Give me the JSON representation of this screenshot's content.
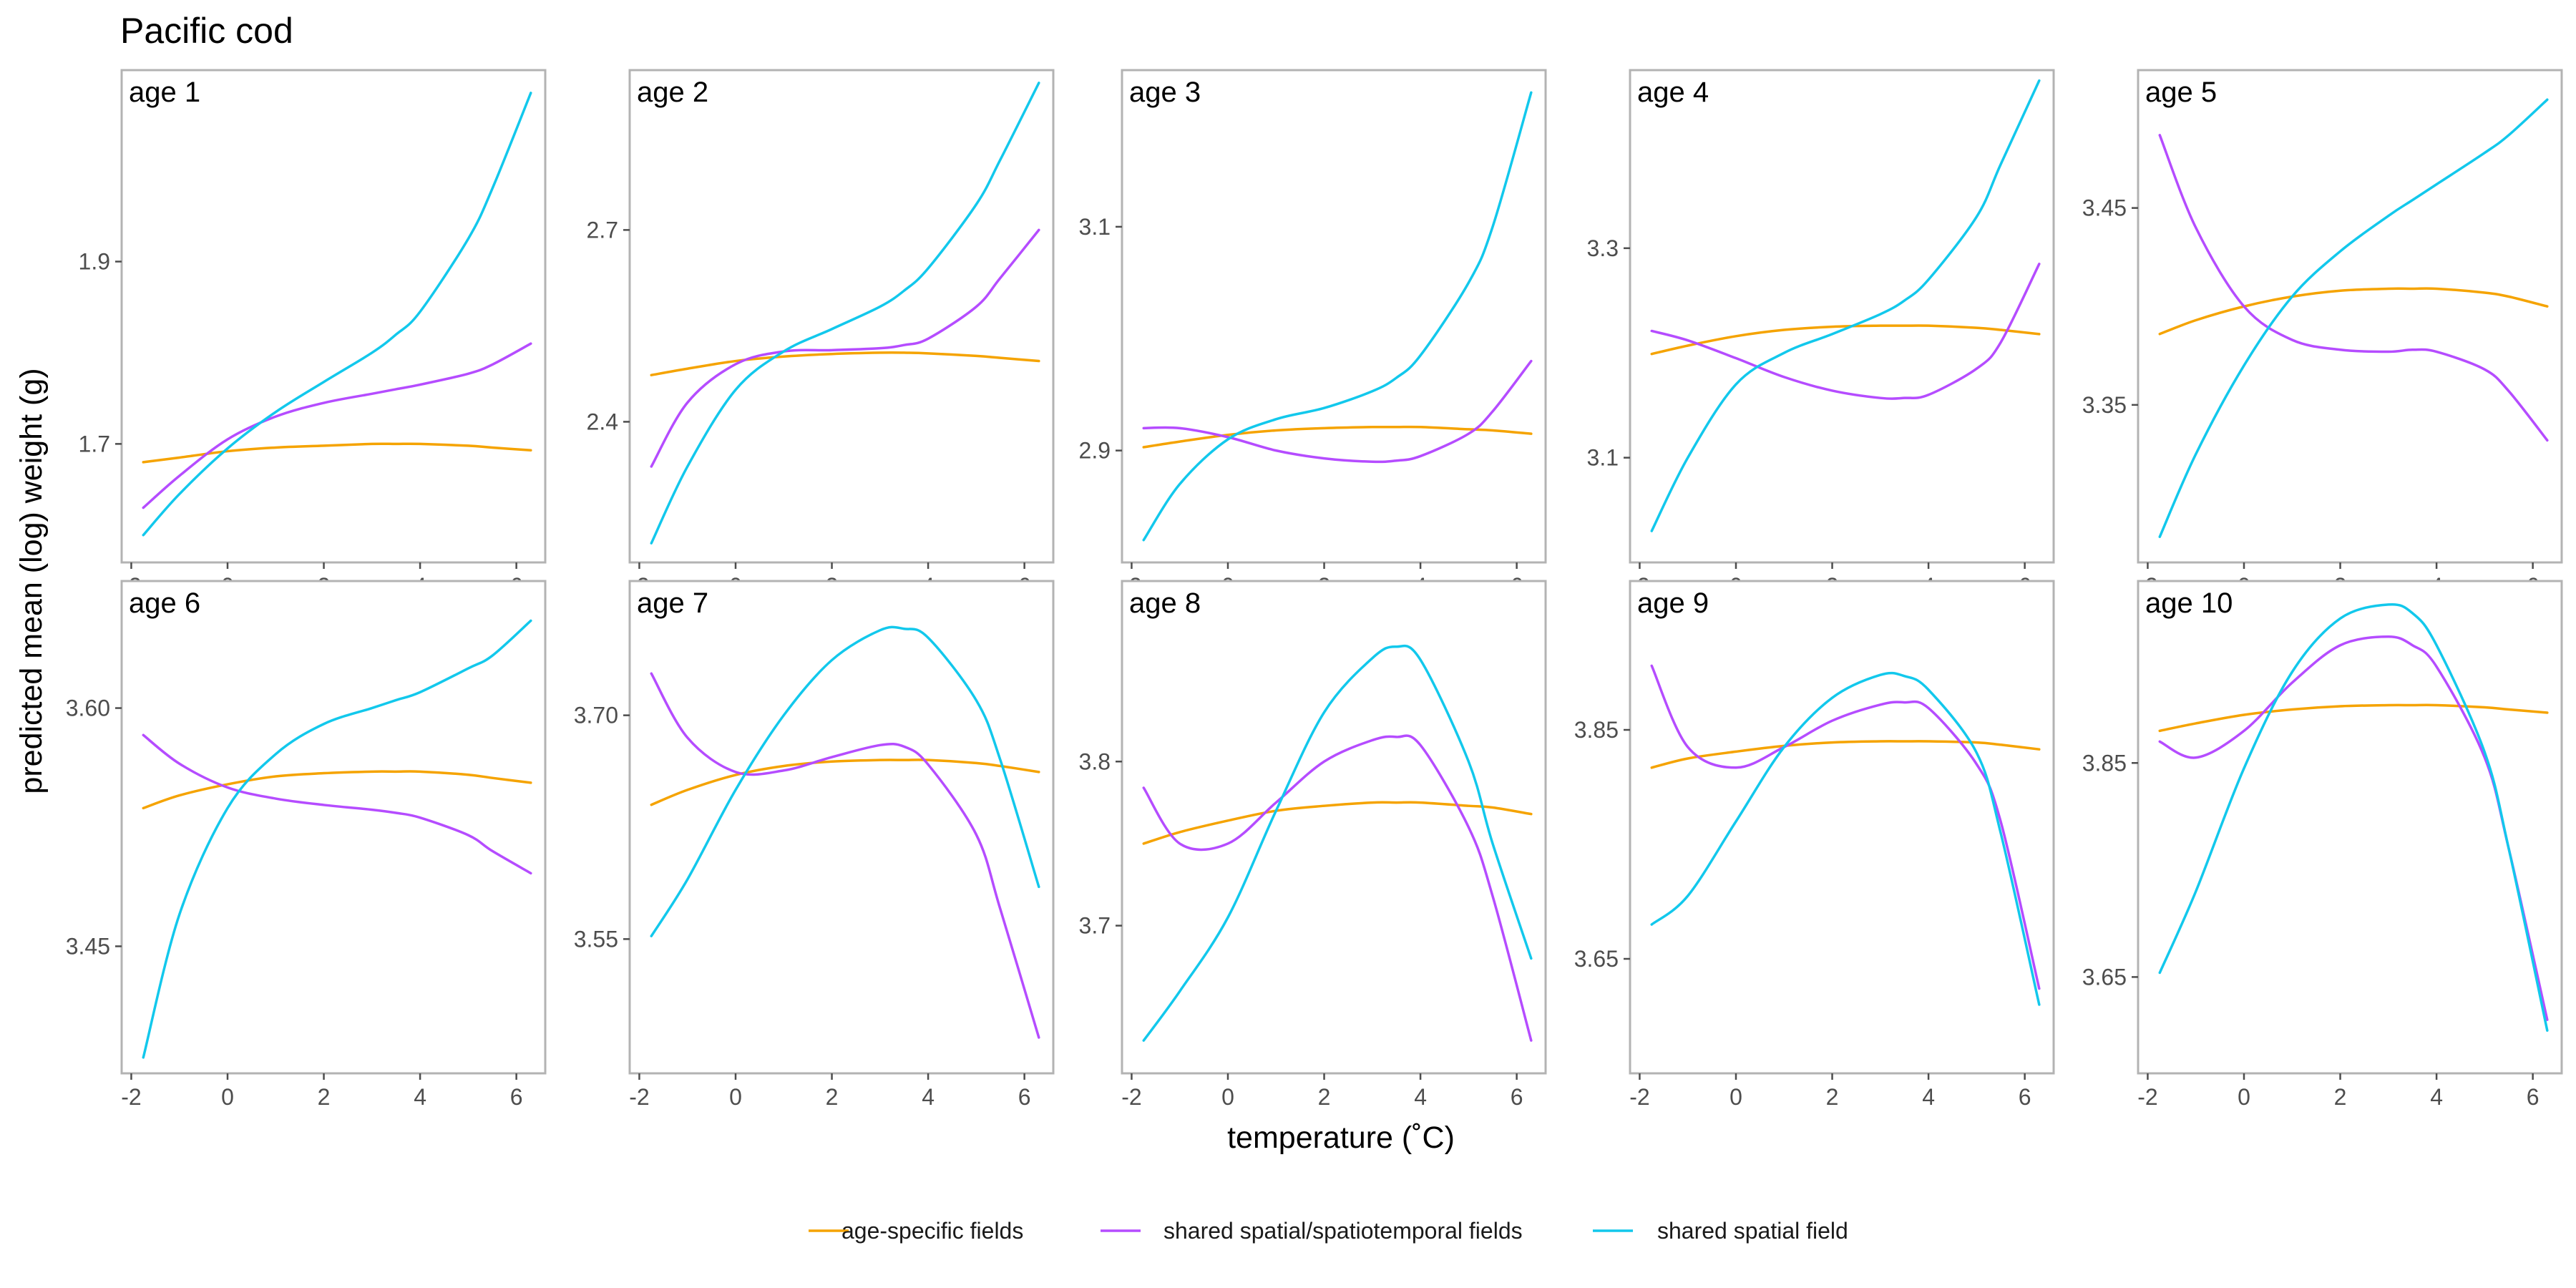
{
  "title": "Pacific cod",
  "chart_data": {
    "type": "line",
    "title": "Pacific cod",
    "xlabel": "temperature (˚C)",
    "ylabel": "predicted mean (log) weight (g)",
    "x_ticks": [
      -2,
      0,
      2,
      4,
      6
    ],
    "x_tick_labels": [
      "-2",
      "0",
      "2",
      "4",
      "6"
    ],
    "xlim": [
      -2.2,
      6.6
    ],
    "x": [
      -1.75,
      -1.0,
      0.0,
      1.0,
      2.0,
      3.0,
      3.5,
      4.0,
      5.0,
      5.5,
      6.3
    ],
    "legend": {
      "position": "bottom"
    },
    "colors": {
      "age-specific fields": "#F5A300",
      "shared spatial/spatiotemporal fields": "#B54CFF",
      "shared spatial field": "#12C8EC"
    },
    "panels": [
      {
        "label": "age 1",
        "ylim": [
          1.57,
          2.11
        ],
        "y_ticks": [
          1.7,
          1.9
        ],
        "y_tick_labels": [
          "1.7",
          "1.9"
        ],
        "series": [
          {
            "name": "age-specific fields",
            "values": [
              1.68,
              1.685,
              1.692,
              1.696,
              1.698,
              1.7,
              1.7,
              1.7,
              1.698,
              1.696,
              1.693
            ]
          },
          {
            "name": "shared spatial/spatiotemporal fields",
            "values": [
              1.63,
              1.665,
              1.705,
              1.73,
              1.745,
              1.755,
              1.76,
              1.765,
              1.777,
              1.787,
              1.81
            ]
          },
          {
            "name": "shared spatial field",
            "values": [
              1.6,
              1.645,
              1.695,
              1.735,
              1.768,
              1.8,
              1.82,
              1.845,
              1.925,
              1.98,
              2.085
            ]
          }
        ]
      },
      {
        "label": "age 2",
        "ylim": [
          2.18,
          2.95
        ],
        "y_ticks": [
          2.4,
          2.7
        ],
        "y_tick_labels": [
          "2.4",
          "2.7"
        ],
        "series": [
          {
            "name": "age-specific fields",
            "values": [
              2.473,
              2.483,
              2.495,
              2.502,
              2.506,
              2.508,
              2.508,
              2.507,
              2.503,
              2.5,
              2.495
            ]
          },
          {
            "name": "shared spatial/spatiotemporal fields",
            "values": [
              2.33,
              2.43,
              2.49,
              2.51,
              2.512,
              2.515,
              2.52,
              2.53,
              2.58,
              2.625,
              2.7
            ]
          },
          {
            "name": "shared spatial field",
            "values": [
              2.21,
              2.33,
              2.45,
              2.51,
              2.545,
              2.58,
              2.605,
              2.64,
              2.74,
              2.81,
              2.93
            ]
          }
        ]
      },
      {
        "label": "age 3",
        "ylim": [
          2.8,
          3.24
        ],
        "y_ticks": [
          2.9,
          3.1
        ],
        "y_tick_labels": [
          "2.9",
          "3.1"
        ],
        "series": [
          {
            "name": "age-specific fields",
            "values": [
              2.903,
              2.908,
              2.914,
              2.918,
              2.92,
              2.921,
              2.921,
              2.921,
              2.919,
              2.918,
              2.915
            ]
          },
          {
            "name": "shared spatial/spatiotemporal fields",
            "values": [
              2.92,
              2.92,
              2.912,
              2.9,
              2.893,
              2.89,
              2.891,
              2.895,
              2.915,
              2.935,
              2.98
            ]
          },
          {
            "name": "shared spatial field",
            "values": [
              2.82,
              2.87,
              2.91,
              2.928,
              2.938,
              2.953,
              2.965,
              2.985,
              3.05,
              3.1,
              3.22
            ]
          }
        ]
      },
      {
        "label": "age 4",
        "ylim": [
          3.0,
          3.47
        ],
        "y_ticks": [
          3.1,
          3.3
        ],
        "y_tick_labels": [
          "3.1",
          "3.3"
        ],
        "series": [
          {
            "name": "age-specific fields",
            "values": [
              3.199,
              3.207,
              3.216,
              3.222,
              3.225,
              3.226,
              3.226,
              3.226,
              3.224,
              3.222,
              3.218
            ]
          },
          {
            "name": "shared spatial/spatiotemporal fields",
            "values": [
              3.221,
              3.212,
              3.195,
              3.177,
              3.164,
              3.157,
              3.157,
              3.16,
              3.185,
              3.21,
              3.285
            ]
          },
          {
            "name": "shared spatial field",
            "values": [
              3.03,
              3.1,
              3.17,
              3.2,
              3.218,
              3.237,
              3.25,
              3.27,
              3.33,
              3.38,
              3.46
            ]
          }
        ]
      },
      {
        "label": "age 5",
        "ylim": [
          3.27,
          3.52
        ],
        "y_ticks": [
          3.35,
          3.45
        ],
        "y_tick_labels": [
          "3.35",
          "3.45"
        ],
        "series": [
          {
            "name": "age-specific fields",
            "values": [
              3.386,
              3.393,
              3.4,
              3.405,
              3.408,
              3.409,
              3.409,
              3.409,
              3.407,
              3.405,
              3.4
            ]
          },
          {
            "name": "shared spatial/spatiotemporal fields",
            "values": [
              3.487,
              3.44,
              3.4,
              3.383,
              3.378,
              3.377,
              3.378,
              3.377,
              3.368,
              3.357,
              3.332
            ]
          },
          {
            "name": "shared spatial field",
            "values": [
              3.283,
              3.325,
              3.37,
              3.405,
              3.428,
              3.446,
              3.454,
              3.462,
              3.478,
              3.487,
              3.505
            ]
          }
        ]
      },
      {
        "label": "age 6",
        "ylim": [
          3.37,
          3.68
        ],
        "y_ticks": [
          3.45,
          3.6
        ],
        "y_tick_labels": [
          "3.45",
          "3.60"
        ],
        "series": [
          {
            "name": "age-specific fields",
            "values": [
              3.537,
              3.545,
              3.552,
              3.557,
              3.559,
              3.56,
              3.56,
              3.56,
              3.558,
              3.556,
              3.553
            ]
          },
          {
            "name": "shared spatial/spatiotemporal fields",
            "values": [
              3.583,
              3.565,
              3.55,
              3.543,
              3.539,
              3.536,
              3.534,
              3.531,
              3.52,
              3.51,
              3.496
            ]
          },
          {
            "name": "shared spatial field",
            "values": [
              3.38,
              3.47,
              3.537,
              3.571,
              3.59,
              3.6,
              3.605,
              3.61,
              3.625,
              3.633,
              3.655
            ]
          }
        ]
      },
      {
        "label": "age 7",
        "ylim": [
          3.46,
          3.79
        ],
        "y_ticks": [
          3.55,
          3.7
        ],
        "y_tick_labels": [
          "3.55",
          "3.70"
        ],
        "series": [
          {
            "name": "age-specific fields",
            "values": [
              3.64,
              3.65,
              3.66,
              3.666,
              3.669,
              3.67,
              3.67,
              3.67,
              3.668,
              3.666,
              3.662
            ]
          },
          {
            "name": "shared spatial/spatiotemporal fields",
            "values": [
              3.728,
              3.685,
              3.662,
              3.663,
              3.672,
              3.68,
              3.679,
              3.667,
              3.62,
              3.57,
              3.484
            ]
          },
          {
            "name": "shared spatial field",
            "values": [
              3.552,
              3.59,
              3.65,
              3.7,
              3.737,
              3.757,
              3.758,
              3.752,
              3.71,
              3.67,
              3.585
            ]
          }
        ]
      },
      {
        "label": "age 8",
        "ylim": [
          3.61,
          3.91
        ],
        "y_ticks": [
          3.7,
          3.8
        ],
        "y_tick_labels": [
          "3.7",
          "3.8"
        ],
        "series": [
          {
            "name": "age-specific fields",
            "values": [
              3.75,
              3.757,
              3.764,
              3.77,
              3.773,
              3.775,
              3.775,
              3.775,
              3.773,
              3.772,
              3.768
            ]
          },
          {
            "name": "shared spatial/spatiotemporal fields",
            "values": [
              3.784,
              3.75,
              3.75,
              3.775,
              3.8,
              3.813,
              3.815,
              3.81,
              3.76,
              3.718,
              3.63
            ]
          },
          {
            "name": "shared spatial field",
            "values": [
              3.63,
              3.66,
              3.705,
              3.77,
              3.83,
              3.863,
              3.87,
              3.862,
              3.8,
              3.75,
              3.68
            ]
          }
        ]
      },
      {
        "label": "age 9",
        "ylim": [
          3.55,
          3.98
        ],
        "y_ticks": [
          3.65,
          3.85
        ],
        "y_tick_labels": [
          "3.65",
          "3.85"
        ],
        "series": [
          {
            "name": "age-specific fields",
            "values": [
              3.817,
              3.825,
              3.831,
              3.836,
              3.839,
              3.84,
              3.84,
              3.84,
              3.839,
              3.837,
              3.833
            ]
          },
          {
            "name": "shared spatial/spatiotemporal fields",
            "values": [
              3.906,
              3.835,
              3.817,
              3.835,
              3.858,
              3.872,
              3.874,
              3.869,
              3.82,
              3.77,
              3.624
            ]
          },
          {
            "name": "shared spatial field",
            "values": [
              3.68,
              3.705,
              3.77,
              3.835,
              3.878,
              3.898,
              3.897,
              3.885,
              3.83,
              3.76,
              3.61
            ]
          }
        ]
      },
      {
        "label": "age 10",
        "ylim": [
          3.56,
          4.02
        ],
        "y_ticks": [
          3.65,
          3.85
        ],
        "y_tick_labels": [
          "3.65",
          "3.85"
        ],
        "series": [
          {
            "name": "age-specific fields",
            "values": [
              3.88,
              3.887,
              3.895,
              3.9,
              3.903,
              3.904,
              3.904,
              3.904,
              3.902,
              3.9,
              3.897
            ]
          },
          {
            "name": "shared spatial/spatiotemporal fields",
            "values": [
              3.87,
              3.855,
              3.88,
              3.925,
              3.96,
              3.968,
              3.96,
              3.94,
              3.855,
              3.77,
              3.61
            ]
          },
          {
            "name": "shared spatial field",
            "values": [
              3.654,
              3.73,
              3.845,
              3.935,
              3.985,
              3.998,
              3.99,
              3.96,
              3.86,
              3.77,
              3.6
            ]
          }
        ]
      }
    ]
  }
}
